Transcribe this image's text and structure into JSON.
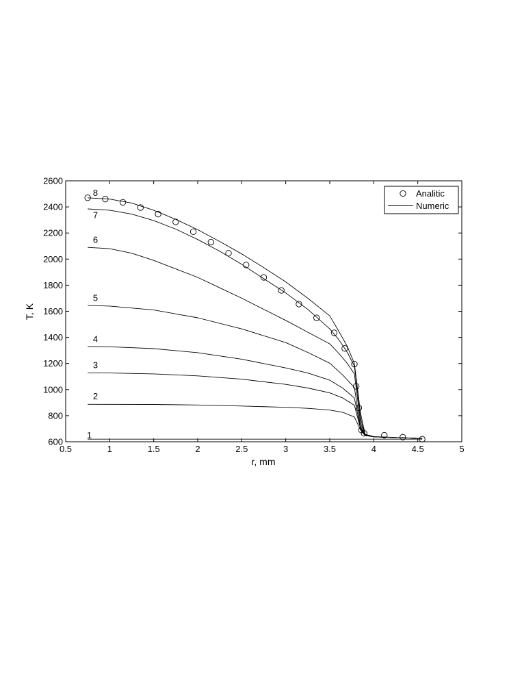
{
  "chart_data": {
    "type": "line",
    "xlabel": "r, mm",
    "ylabel": "T, K",
    "xlim": [
      0.5,
      5
    ],
    "ylim": [
      600,
      2600
    ],
    "xticks": [
      0.5,
      1,
      1.5,
      2,
      2.5,
      3,
      3.5,
      4,
      4.5,
      5
    ],
    "yticks": [
      600,
      800,
      1000,
      1200,
      1400,
      1600,
      1800,
      2000,
      2200,
      2400,
      2600
    ],
    "xtick_labels": [
      "0.5",
      "1",
      "1.5",
      "2",
      "2.5",
      "3",
      "3.5",
      "4",
      "4.5",
      "5"
    ],
    "ytick_labels": [
      "600",
      "800",
      "1000",
      "1200",
      "1400",
      "1600",
      "1800",
      "2000",
      "2200",
      "2400",
      "2600"
    ],
    "grid": false,
    "legend": {
      "position": "top-right",
      "entries": [
        {
          "label": "Analitic",
          "marker": "circle"
        },
        {
          "label": "Numeric",
          "marker": "line"
        }
      ]
    },
    "series": [
      {
        "label": "1",
        "style": "line",
        "label_at": [
          0.74,
          625
        ],
        "x": [
          0.75,
          3.5,
          3.8,
          3.85,
          3.9,
          4.0,
          4.55
        ],
        "y": [
          620,
          620,
          620,
          620,
          620,
          620,
          620
        ]
      },
      {
        "label": "2",
        "style": "line",
        "label_at": [
          0.81,
          925
        ],
        "x": [
          0.75,
          1.5,
          2.0,
          2.5,
          3.0,
          3.25,
          3.5,
          3.65,
          3.78,
          3.85,
          3.9,
          4.0,
          4.55
        ],
        "y": [
          887,
          886,
          882,
          874,
          864,
          856,
          843,
          825,
          790,
          690,
          648,
          638,
          625
        ]
      },
      {
        "label": "3",
        "style": "line",
        "label_at": [
          0.81,
          1165
        ],
        "x": [
          0.75,
          1.0,
          1.5,
          2.0,
          2.5,
          3.0,
          3.25,
          3.5,
          3.65,
          3.78,
          3.85,
          3.9,
          4.0,
          4.55
        ],
        "y": [
          1127,
          1127,
          1120,
          1105,
          1080,
          1040,
          1012,
          975,
          935,
          880,
          700,
          650,
          638,
          625
        ]
      },
      {
        "label": "4",
        "style": "line",
        "label_at": [
          0.81,
          1365
        ],
        "x": [
          0.75,
          1.0,
          1.5,
          2.0,
          2.5,
          3.0,
          3.25,
          3.5,
          3.65,
          3.78,
          3.85,
          3.9,
          4.0,
          4.55
        ],
        "y": [
          1330,
          1328,
          1314,
          1283,
          1233,
          1166,
          1127,
          1072,
          1010,
          935,
          705,
          651,
          638,
          625
        ]
      },
      {
        "label": "5",
        "style": "line",
        "label_at": [
          0.81,
          1680
        ],
        "x": [
          0.75,
          1.0,
          1.5,
          2.0,
          2.5,
          3.0,
          3.25,
          3.5,
          3.65,
          3.78,
          3.85,
          3.9,
          4.0,
          4.55
        ],
        "y": [
          1645,
          1640,
          1610,
          1550,
          1465,
          1360,
          1285,
          1202,
          1110,
          1015,
          715,
          652,
          638,
          625
        ]
      },
      {
        "label": "6",
        "style": "line",
        "label_at": [
          0.81,
          2125
        ],
        "x": [
          0.75,
          1.0,
          1.25,
          1.5,
          1.75,
          2.0,
          2.25,
          2.5,
          2.75,
          3.0,
          3.25,
          3.5,
          3.6,
          3.7,
          3.78,
          3.85,
          3.9,
          4.0,
          4.55
        ],
        "y": [
          2090,
          2080,
          2045,
          1990,
          1925,
          1860,
          1780,
          1700,
          1615,
          1530,
          1440,
          1350,
          1280,
          1200,
          1120,
          745,
          652,
          638,
          625
        ]
      },
      {
        "label": "7",
        "style": "line",
        "label_at": [
          0.81,
          2315
        ],
        "x": [
          0.75,
          1.0,
          1.25,
          1.5,
          1.75,
          2.0,
          2.25,
          2.5,
          2.75,
          3.0,
          3.25,
          3.5,
          3.6,
          3.7,
          3.78,
          3.85,
          3.9,
          4.0,
          4.55
        ],
        "y": [
          2385,
          2375,
          2345,
          2295,
          2230,
          2150,
          2060,
          1960,
          1850,
          1740,
          1615,
          1465,
          1385,
          1285,
          1180,
          780,
          655,
          638,
          625
        ]
      },
      {
        "label": "8",
        "style": "line",
        "label_at": [
          0.81,
          2485
        ],
        "x": [
          0.75,
          1.0,
          1.25,
          1.5,
          1.75,
          2.0,
          2.25,
          2.5,
          2.75,
          3.0,
          3.25,
          3.5,
          3.6,
          3.7,
          3.78,
          3.85,
          3.9,
          4.0,
          4.55
        ],
        "y": [
          2470,
          2460,
          2430,
          2375,
          2305,
          2225,
          2135,
          2040,
          1935,
          1825,
          1700,
          1565,
          1450,
          1330,
          1200,
          820,
          658,
          640,
          625
        ]
      },
      {
        "label": "Analitic",
        "style": "markers",
        "x": [
          0.75,
          0.95,
          1.15,
          1.35,
          1.55,
          1.75,
          1.95,
          2.15,
          2.35,
          2.55,
          2.75,
          2.95,
          3.15,
          3.35,
          3.55,
          3.67,
          3.78,
          3.8,
          3.83,
          3.86,
          3.89,
          4.12,
          4.33,
          4.55
        ],
        "y": [
          2470,
          2460,
          2435,
          2395,
          2345,
          2285,
          2210,
          2130,
          2045,
          1955,
          1860,
          1760,
          1655,
          1550,
          1435,
          1315,
          1195,
          1025,
          860,
          690,
          665,
          650,
          635,
          620
        ]
      }
    ]
  }
}
